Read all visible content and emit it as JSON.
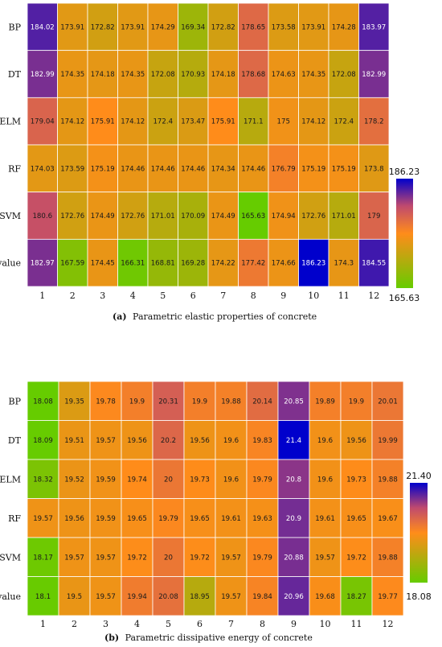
{
  "colors": {
    "low": "#66cc00",
    "mid": "#ff8c1a",
    "high": "#0000cc",
    "grid": "#ffffff"
  },
  "chart_data": [
    {
      "type": "heatmap",
      "caption_label": "(a)",
      "caption_text": "Parametric elastic properties of concrete",
      "rows": [
        "BP",
        "DT",
        "ELM",
        "RF",
        "SVM",
        "True value"
      ],
      "columns": [
        "1",
        "2",
        "3",
        "4",
        "5",
        "6",
        "7",
        "8",
        "9",
        "10",
        "11",
        "12"
      ],
      "values": [
        [
          184.02,
          173.91,
          172.82,
          173.91,
          174.29,
          169.34,
          172.82,
          178.65,
          173.58,
          173.91,
          174.28,
          183.97
        ],
        [
          182.99,
          174.35,
          174.18,
          174.35,
          172.08,
          170.93,
          174.18,
          178.68,
          174.63,
          174.35,
          172.08,
          182.99
        ],
        [
          179.04,
          174.12,
          175.91,
          174.12,
          172.4,
          173.47,
          175.91,
          171.1,
          175,
          174.12,
          172.4,
          178.2
        ],
        [
          174.03,
          173.59,
          175.19,
          174.46,
          174.46,
          174.46,
          174.34,
          174.46,
          176.79,
          175.19,
          175.19,
          173.8
        ],
        [
          180.6,
          172.76,
          174.49,
          172.76,
          171.01,
          170.09,
          174.49,
          165.63,
          174.94,
          172.76,
          171.01,
          179
        ],
        [
          182.97,
          167.59,
          174.45,
          166.31,
          168.81,
          169.28,
          174.22,
          177.42,
          174.66,
          186.23,
          174.3,
          184.55
        ]
      ],
      "vmin": 165.63,
      "vmax": 186.23,
      "colorbar_min_label": "165.63",
      "colorbar_max_label": "186.23"
    },
    {
      "type": "heatmap",
      "caption_label": "(b)",
      "caption_text": "Parametric dissipative energy of concrete",
      "rows": [
        "BP",
        "DT",
        "ELM",
        "RF",
        "SVM",
        "True value"
      ],
      "columns": [
        "1",
        "2",
        "3",
        "4",
        "5",
        "6",
        "7",
        "8",
        "9",
        "10",
        "11",
        "12"
      ],
      "values": [
        [
          18.08,
          19.35,
          19.78,
          19.9,
          20.31,
          19.9,
          19.88,
          20.14,
          20.85,
          19.89,
          19.9,
          20.01
        ],
        [
          18.09,
          19.51,
          19.57,
          19.56,
          20.2,
          19.56,
          19.6,
          19.83,
          21.4,
          19.6,
          19.56,
          19.99
        ],
        [
          18.32,
          19.52,
          19.59,
          19.74,
          20,
          19.73,
          19.6,
          19.79,
          20.8,
          19.6,
          19.73,
          19.88
        ],
        [
          19.57,
          19.56,
          19.59,
          19.65,
          19.79,
          19.65,
          19.61,
          19.63,
          20.9,
          19.61,
          19.65,
          19.67
        ],
        [
          18.17,
          19.57,
          19.57,
          19.72,
          20,
          19.72,
          19.57,
          19.79,
          20.88,
          19.57,
          19.72,
          19.88
        ],
        [
          18.1,
          19.5,
          19.57,
          19.94,
          20.08,
          18.95,
          19.57,
          19.84,
          20.96,
          19.68,
          18.27,
          19.77
        ]
      ],
      "vmin": 18.08,
      "vmax": 21.4,
      "colorbar_min_label": "18.08",
      "colorbar_max_label": "21.40"
    }
  ]
}
